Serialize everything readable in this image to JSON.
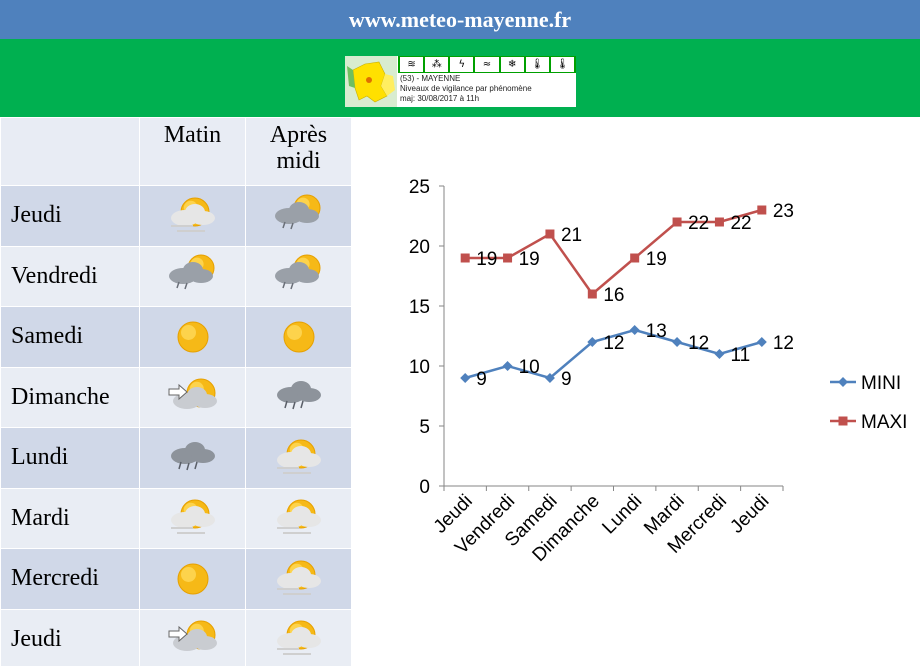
{
  "site": {
    "title": "www.meteo-mayenne.fr"
  },
  "vigilance": {
    "department": "(53) - MAYENNE",
    "subtitle": "Niveaux de vigilance par phénomène",
    "updated": "maj: 30/08/2017 à 11h"
  },
  "table": {
    "headers": {
      "morning": "Matin",
      "afternoon": "Après midi"
    },
    "days": [
      {
        "name": "Jeudi",
        "morning_icon": "sun-cloud-fog-icon",
        "afternoon_icon": "sun-cloud-rain-icon"
      },
      {
        "name": "Vendredi",
        "morning_icon": "sun-cloud-rain-icon",
        "afternoon_icon": "sun-cloud-rain-icon"
      },
      {
        "name": "Samedi",
        "morning_icon": "sun-icon",
        "afternoon_icon": "sun-icon"
      },
      {
        "name": "Dimanche",
        "morning_icon": "wind-sun-cloud-icon",
        "afternoon_icon": "rain-cloud-icon"
      },
      {
        "name": "Lundi",
        "morning_icon": "rain-cloud-icon",
        "afternoon_icon": "sun-cloud-fog-icon"
      },
      {
        "name": "Mardi",
        "morning_icon": "sun-cloud-fog-icon",
        "afternoon_icon": "sun-cloud-fog-icon"
      },
      {
        "name": "Mercredi",
        "morning_icon": "sun-icon",
        "afternoon_icon": "sun-cloud-fog-icon"
      },
      {
        "name": "Jeudi",
        "morning_icon": "wind-sun-cloud-icon",
        "afternoon_icon": "sun-cloud-fog-icon"
      }
    ]
  },
  "chart_data": {
    "type": "line",
    "categories": [
      "Jeudi",
      "Vendredi",
      "Samedi",
      "Dimanche",
      "Lundi",
      "Mardi",
      "Mercredi",
      "Jeudi"
    ],
    "series": [
      {
        "name": "MINI",
        "values": [
          9,
          10,
          9,
          12,
          13,
          12,
          11,
          12
        ],
        "color": "#4f81bd",
        "marker": "diamond"
      },
      {
        "name": "MAXI",
        "values": [
          19,
          19,
          21,
          16,
          19,
          22,
          22,
          23
        ],
        "color": "#c0504d",
        "marker": "square"
      }
    ],
    "ylim": [
      0,
      25
    ],
    "yticks": [
      0,
      5,
      10,
      15,
      20,
      25
    ],
    "grid": false,
    "legend": "right",
    "data_labels": true
  }
}
